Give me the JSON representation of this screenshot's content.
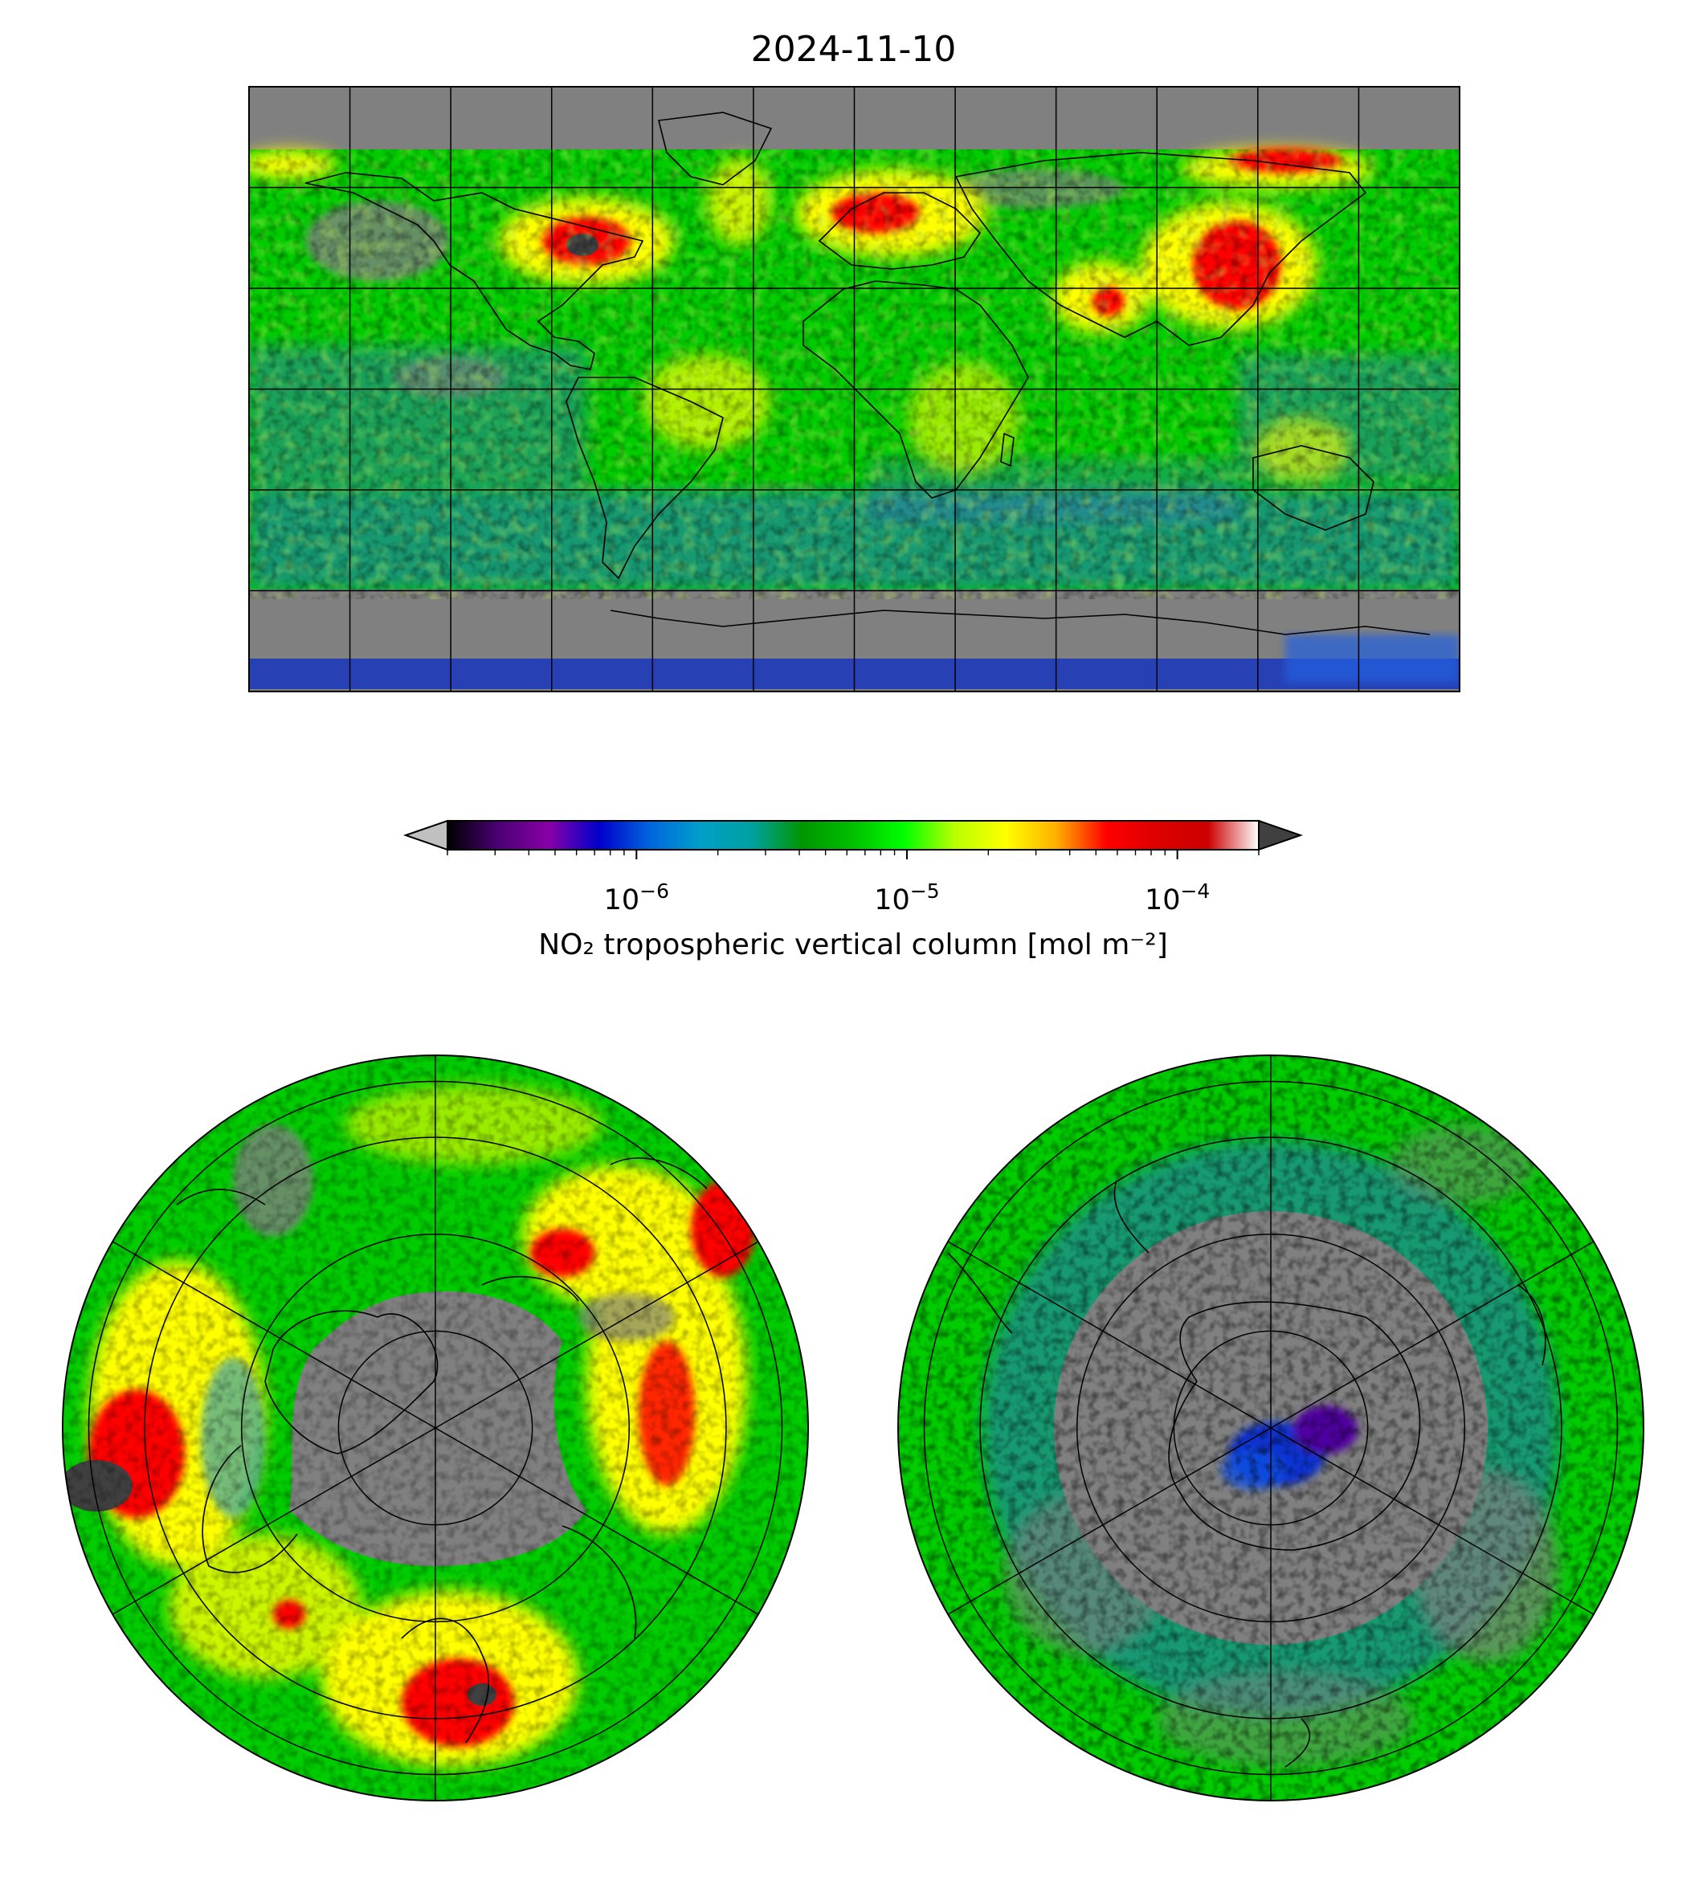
{
  "figure": {
    "title": "2024-11-10"
  },
  "colorbar": {
    "label": "NO₂ tropospheric vertical column [mol m⁻²]",
    "scale": "log",
    "range": [
      2e-07,
      0.0002
    ],
    "extend": "both",
    "under_color": "#c0c0c0",
    "over_color": "#404040",
    "tick_labels": [
      {
        "base": "10",
        "exp": "−6",
        "value": 1e-06
      },
      {
        "base": "10",
        "exp": "−5",
        "value": 1e-05
      },
      {
        "base": "10",
        "exp": "−4",
        "value": 0.0001
      }
    ],
    "colormap": [
      "#000000",
      "#4b0073",
      "#8800a8",
      "#0000cc",
      "#0066dd",
      "#00a0c8",
      "#00a0a0",
      "#009700",
      "#00c000",
      "#00ff00",
      "#b8ff00",
      "#ffff00",
      "#ffb000",
      "#ff0000",
      "#dd0000",
      "#cc0000",
      "#ffffff"
    ]
  },
  "maps": {
    "global": {
      "projection": "PlateCarree",
      "gridlines": "every 30°",
      "nodata_color": "#808080"
    },
    "north_polar": {
      "projection": "North Polar Stereographic"
    },
    "south_polar": {
      "projection": "South Polar Stereographic"
    }
  },
  "colors": {
    "nodata": "#808080",
    "low": "#0000cc",
    "background": "#00cc00",
    "moderate": "#ffff00",
    "high": "#ff0000",
    "very_high": "#404040"
  }
}
